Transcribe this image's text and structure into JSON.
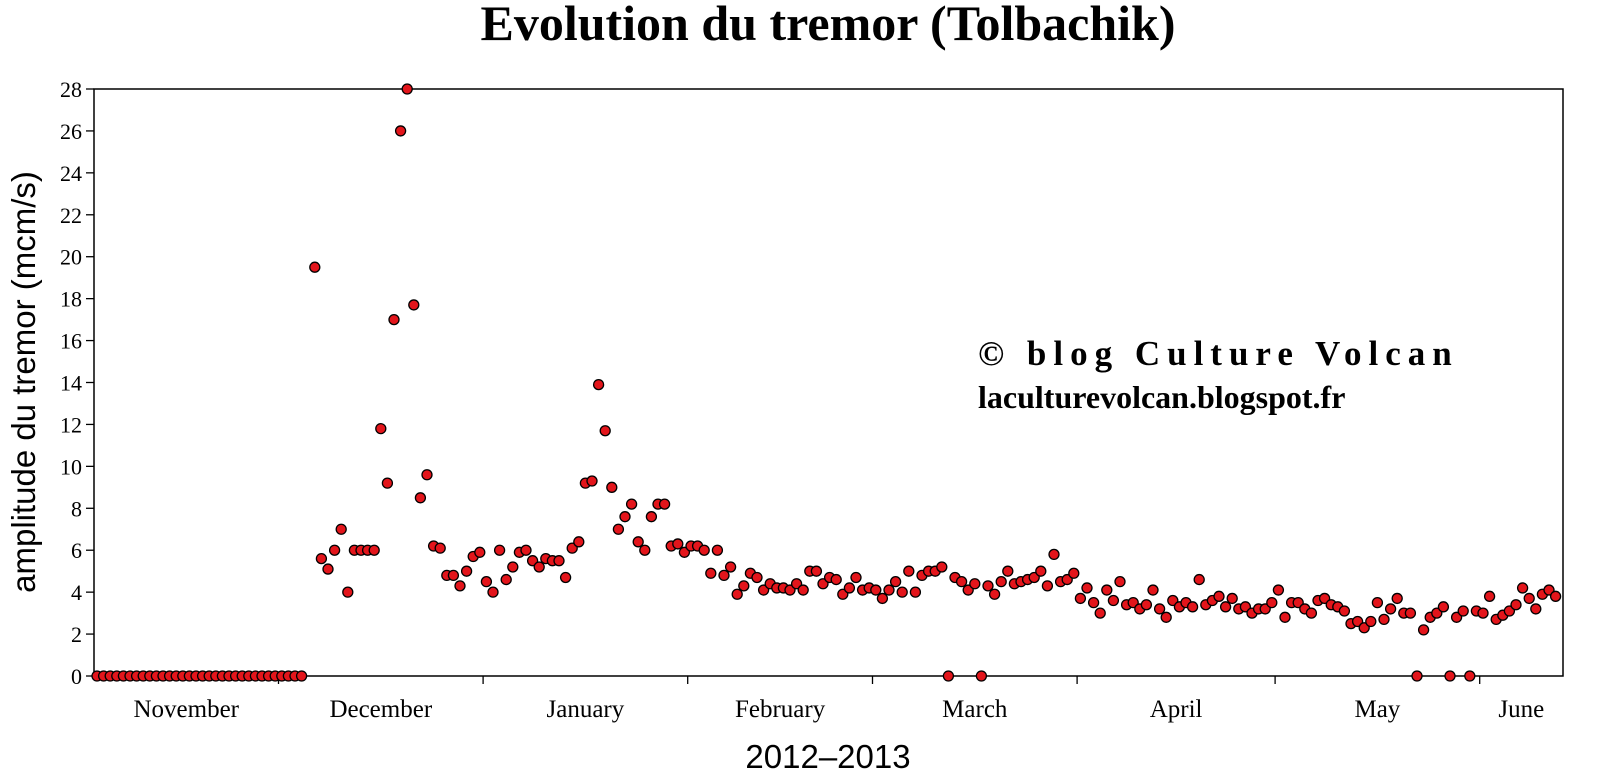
{
  "chart_data": {
    "type": "scatter",
    "title": "Evolution du tremor (Tolbachik)",
    "xlabel": "2012–2013",
    "ylabel": "amplitude du tremor (mcm/s)",
    "ylim": [
      0,
      28
    ],
    "y_ticks": [
      0,
      2,
      4,
      6,
      8,
      10,
      12,
      14,
      16,
      18,
      20,
      22,
      24,
      26,
      28
    ],
    "x_categories": [
      "November",
      "December",
      "January",
      "February",
      "March",
      "April",
      "May",
      "June"
    ],
    "grid": false,
    "marker_color": "#e3151b",
    "x_unit": "day index from start of series",
    "points": [
      [
        0,
        0
      ],
      [
        1,
        0
      ],
      [
        2,
        0
      ],
      [
        3,
        0
      ],
      [
        4,
        0
      ],
      [
        5,
        0
      ],
      [
        6,
        0
      ],
      [
        7,
        0
      ],
      [
        8,
        0
      ],
      [
        9,
        0
      ],
      [
        10,
        0
      ],
      [
        11,
        0
      ],
      [
        12,
        0
      ],
      [
        13,
        0
      ],
      [
        14,
        0
      ],
      [
        15,
        0
      ],
      [
        16,
        0
      ],
      [
        17,
        0
      ],
      [
        18,
        0
      ],
      [
        19,
        0
      ],
      [
        20,
        0
      ],
      [
        21,
        0
      ],
      [
        22,
        0
      ],
      [
        23,
        0
      ],
      [
        24,
        0
      ],
      [
        25,
        0
      ],
      [
        26,
        0
      ],
      [
        27,
        0
      ],
      [
        28,
        0
      ],
      [
        29,
        0
      ],
      [
        30,
        0
      ],
      [
        31,
        0
      ],
      [
        33,
        19.5
      ],
      [
        34,
        5.6
      ],
      [
        35,
        5.1
      ],
      [
        36,
        6.0
      ],
      [
        37,
        7.0
      ],
      [
        38,
        4.0
      ],
      [
        39,
        6.0
      ],
      [
        40,
        6.0
      ],
      [
        41,
        6.0
      ],
      [
        42,
        6.0
      ],
      [
        43,
        11.8
      ],
      [
        44,
        9.2
      ],
      [
        45,
        17.0
      ],
      [
        46,
        26.0
      ],
      [
        47,
        28.0
      ],
      [
        48,
        17.7
      ],
      [
        49,
        8.5
      ],
      [
        50,
        9.6
      ],
      [
        51,
        6.2
      ],
      [
        52,
        6.1
      ],
      [
        53,
        4.8
      ],
      [
        54,
        4.8
      ],
      [
        55,
        4.3
      ],
      [
        56,
        5.0
      ],
      [
        57,
        5.7
      ],
      [
        58,
        5.9
      ],
      [
        59,
        4.5
      ],
      [
        60,
        4.0
      ],
      [
        61,
        6.0
      ],
      [
        62,
        4.6
      ],
      [
        63,
        5.2
      ],
      [
        64,
        5.9
      ],
      [
        65,
        6.0
      ],
      [
        66,
        5.5
      ],
      [
        67,
        5.2
      ],
      [
        68,
        5.6
      ],
      [
        69,
        5.5
      ],
      [
        70,
        5.5
      ],
      [
        71,
        4.7
      ],
      [
        72,
        6.1
      ],
      [
        73,
        6.4
      ],
      [
        74,
        9.2
      ],
      [
        75,
        9.3
      ],
      [
        76,
        13.9
      ],
      [
        77,
        11.7
      ],
      [
        78,
        9.0
      ],
      [
        79,
        7.0
      ],
      [
        80,
        7.6
      ],
      [
        81,
        8.2
      ],
      [
        82,
        6.4
      ],
      [
        83,
        6.0
      ],
      [
        84,
        7.6
      ],
      [
        85,
        8.2
      ],
      [
        86,
        8.2
      ],
      [
        87,
        6.2
      ],
      [
        88,
        6.3
      ],
      [
        89,
        5.9
      ],
      [
        90,
        6.2
      ],
      [
        91,
        6.2
      ],
      [
        92,
        6.0
      ],
      [
        93,
        4.9
      ],
      [
        94,
        6.0
      ],
      [
        95,
        4.8
      ],
      [
        96,
        5.2
      ],
      [
        97,
        3.9
      ],
      [
        98,
        4.3
      ],
      [
        99,
        4.9
      ],
      [
        100,
        4.7
      ],
      [
        101,
        4.1
      ],
      [
        102,
        4.4
      ],
      [
        103,
        4.2
      ],
      [
        104,
        4.2
      ],
      [
        105,
        4.1
      ],
      [
        106,
        4.4
      ],
      [
        107,
        4.1
      ],
      [
        108,
        5.0
      ],
      [
        109,
        5.0
      ],
      [
        110,
        4.4
      ],
      [
        111,
        4.7
      ],
      [
        112,
        4.6
      ],
      [
        113,
        3.9
      ],
      [
        114,
        4.2
      ],
      [
        115,
        4.7
      ],
      [
        116,
        4.1
      ],
      [
        117,
        4.2
      ],
      [
        118,
        4.1
      ],
      [
        119,
        3.7
      ],
      [
        120,
        4.1
      ],
      [
        121,
        4.5
      ],
      [
        122,
        4.0
      ],
      [
        123,
        5.0
      ],
      [
        124,
        4.0
      ],
      [
        125,
        4.8
      ],
      [
        126,
        5.0
      ],
      [
        127,
        5.0
      ],
      [
        128,
        5.2
      ],
      [
        129,
        0
      ],
      [
        130,
        4.7
      ],
      [
        131,
        4.5
      ],
      [
        132,
        4.1
      ],
      [
        133,
        4.4
      ],
      [
        134,
        0
      ],
      [
        135,
        4.3
      ],
      [
        136,
        3.9
      ],
      [
        137,
        4.5
      ],
      [
        138,
        5.0
      ],
      [
        139,
        4.4
      ],
      [
        140,
        4.5
      ],
      [
        141,
        4.6
      ],
      [
        142,
        4.7
      ],
      [
        143,
        5.0
      ],
      [
        144,
        4.3
      ],
      [
        145,
        5.8
      ],
      [
        146,
        4.5
      ],
      [
        147,
        4.6
      ],
      [
        148,
        4.9
      ],
      [
        149,
        3.7
      ],
      [
        150,
        4.2
      ],
      [
        151,
        3.5
      ],
      [
        152,
        3.0
      ],
      [
        153,
        4.1
      ],
      [
        154,
        3.6
      ],
      [
        155,
        4.5
      ],
      [
        156,
        3.4
      ],
      [
        157,
        3.5
      ],
      [
        158,
        3.2
      ],
      [
        159,
        3.4
      ],
      [
        160,
        4.1
      ],
      [
        161,
        3.2
      ],
      [
        162,
        2.8
      ],
      [
        163,
        3.6
      ],
      [
        164,
        3.3
      ],
      [
        165,
        3.5
      ],
      [
        166,
        3.3
      ],
      [
        167,
        4.6
      ],
      [
        168,
        3.4
      ],
      [
        169,
        3.6
      ],
      [
        170,
        3.8
      ],
      [
        171,
        3.3
      ],
      [
        172,
        3.7
      ],
      [
        173,
        3.2
      ],
      [
        174,
        3.3
      ],
      [
        175,
        3.0
      ],
      [
        176,
        3.2
      ],
      [
        177,
        3.2
      ],
      [
        178,
        3.5
      ],
      [
        179,
        4.1
      ],
      [
        180,
        2.8
      ],
      [
        181,
        3.5
      ],
      [
        182,
        3.5
      ],
      [
        183,
        3.2
      ],
      [
        184,
        3.0
      ],
      [
        185,
        3.6
      ],
      [
        186,
        3.7
      ],
      [
        187,
        3.4
      ],
      [
        188,
        3.3
      ],
      [
        189,
        3.1
      ],
      [
        190,
        2.5
      ],
      [
        191,
        2.6
      ],
      [
        192,
        2.3
      ],
      [
        193,
        2.6
      ],
      [
        194,
        3.5
      ],
      [
        195,
        2.7
      ],
      [
        196,
        3.2
      ],
      [
        197,
        3.7
      ],
      [
        198,
        3.0
      ],
      [
        199,
        3.0
      ],
      [
        200,
        0
      ],
      [
        201,
        2.2
      ],
      [
        202,
        2.8
      ],
      [
        203,
        3.0
      ],
      [
        204,
        3.3
      ],
      [
        205,
        0
      ],
      [
        206,
        2.8
      ],
      [
        207,
        3.1
      ],
      [
        208,
        0
      ],
      [
        209,
        3.1
      ],
      [
        210,
        3.0
      ],
      [
        211,
        3.8
      ],
      [
        212,
        2.7
      ],
      [
        213,
        2.9
      ],
      [
        214,
        3.1
      ],
      [
        215,
        3.4
      ],
      [
        216,
        4.2
      ],
      [
        217,
        3.7
      ],
      [
        218,
        3.2
      ],
      [
        219,
        3.9
      ],
      [
        220,
        4.1
      ],
      [
        221,
        3.8
      ]
    ]
  }
}
